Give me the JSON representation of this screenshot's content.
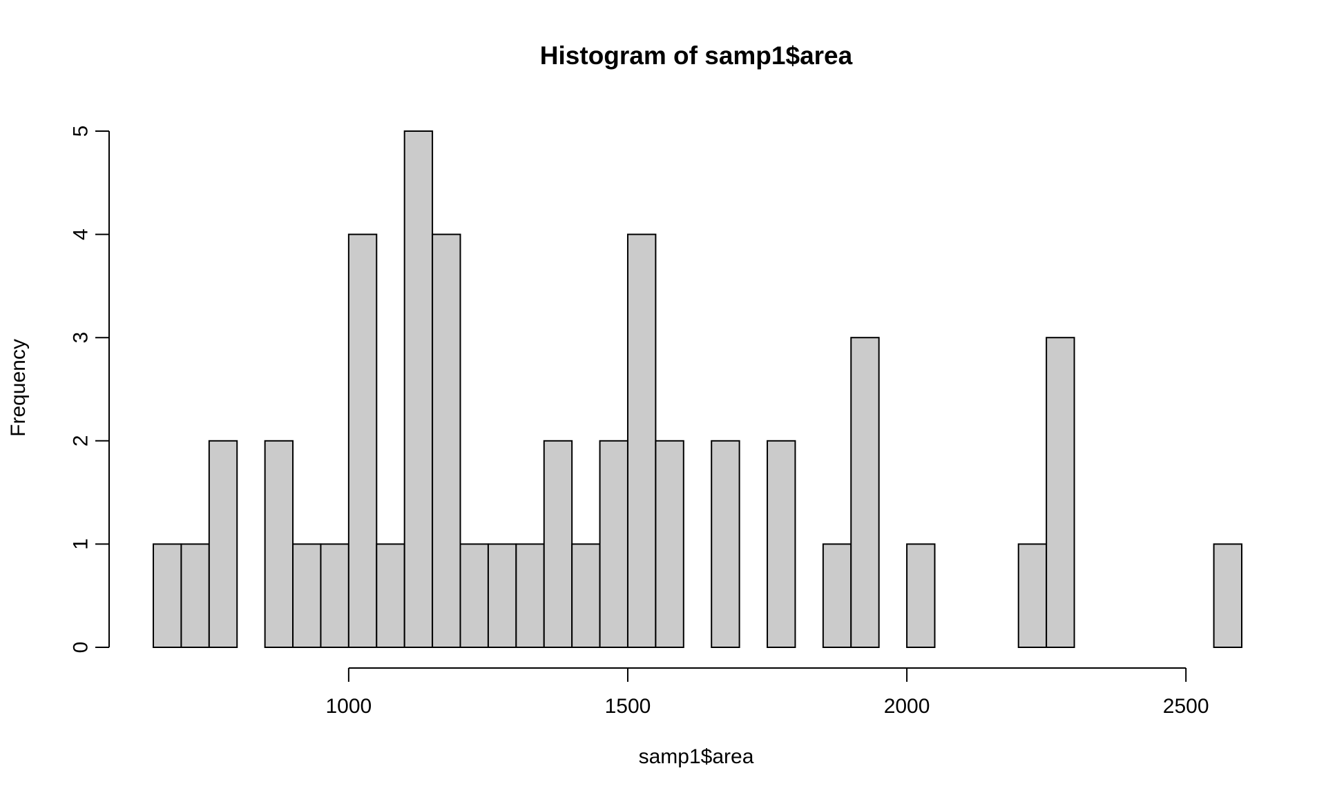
{
  "chart_data": {
    "type": "bar",
    "title": "Histogram of samp1$area",
    "xlabel": "samp1$area",
    "ylabel": "Frequency",
    "bin_width": 50,
    "bin_start": 650,
    "counts": [
      1,
      1,
      2,
      0,
      2,
      1,
      1,
      4,
      1,
      5,
      4,
      1,
      1,
      1,
      2,
      1,
      2,
      4,
      2,
      0,
      2,
      0,
      2,
      0,
      1,
      3,
      0,
      1,
      0,
      0,
      0,
      1,
      3,
      0,
      0,
      0,
      0,
      0,
      1
    ],
    "xlim": [
      650,
      2600
    ],
    "ylim": [
      0,
      5
    ],
    "x_ticks": [
      1000,
      1500,
      2000,
      2500
    ],
    "y_ticks": [
      0,
      1,
      2,
      3,
      4,
      5
    ],
    "grid": false,
    "colors": {
      "bar_fill": "#cbcbcb",
      "bar_stroke": "#000000"
    }
  }
}
